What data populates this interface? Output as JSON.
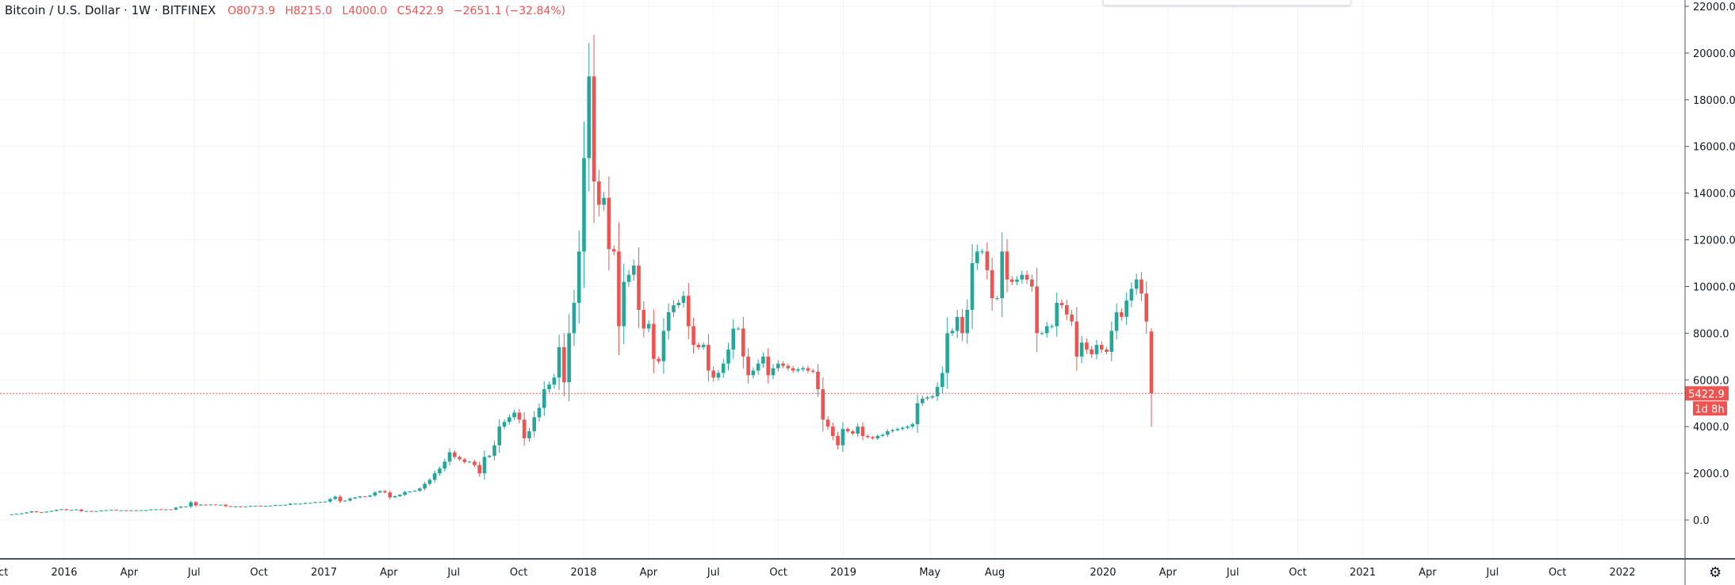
{
  "header": {
    "symbol": "Bitcoin / U.S. Dollar",
    "interval": "1W",
    "exchange": "BITFINEX",
    "open": "O8073.9",
    "high": "H8215.0",
    "low": "L4000.0",
    "close": "C5422.9",
    "change": "−2651.1 (−32.84%)"
  },
  "colors": {
    "up": "#26a69a",
    "down": "#ef5350",
    "grid": "#f0f3fa",
    "axis": "#50535e"
  },
  "price_label": "5422.9",
  "countdown_label": "1d 8h",
  "settings_icon": "gear-icon",
  "chart_data": {
    "type": "candlestick",
    "interval": "1W",
    "ylim": [
      -1500,
      22000
    ],
    "yticks": [
      0,
      2000,
      4000,
      6000,
      8000,
      10000,
      12000,
      14000,
      16000,
      18000,
      20000,
      22000
    ],
    "ytick_labels": [
      "0.0",
      "2000.0",
      "4000.0",
      "6000.0",
      "8000.0",
      "10000.0",
      "12000.0",
      "14000.0",
      "16000.0",
      "18000.0",
      "20000.0",
      "22000.0"
    ],
    "xticks": [
      {
        "label": "Oct",
        "date": "2015-10"
      },
      {
        "label": "2016",
        "date": "2016-01"
      },
      {
        "label": "Apr",
        "date": "2016-04"
      },
      {
        "label": "Jul",
        "date": "2016-07"
      },
      {
        "label": "Oct",
        "date": "2016-10"
      },
      {
        "label": "2017",
        "date": "2017-01"
      },
      {
        "label": "Apr",
        "date": "2017-04"
      },
      {
        "label": "Jul",
        "date": "2017-07"
      },
      {
        "label": "Oct",
        "date": "2017-10"
      },
      {
        "label": "2018",
        "date": "2018-01"
      },
      {
        "label": "Apr",
        "date": "2018-04"
      },
      {
        "label": "Jul",
        "date": "2018-07"
      },
      {
        "label": "Oct",
        "date": "2018-10"
      },
      {
        "label": "2019",
        "date": "2019-01"
      },
      {
        "label": "May",
        "date": "2019-05"
      },
      {
        "label": "Aug",
        "date": "2019-08"
      },
      {
        "label": "2020",
        "date": "2020-01"
      },
      {
        "label": "Apr",
        "date": "2020-04"
      },
      {
        "label": "Jul",
        "date": "2020-07"
      },
      {
        "label": "Oct",
        "date": "2020-10"
      },
      {
        "label": "2021",
        "date": "2021-01"
      },
      {
        "label": "Apr",
        "date": "2021-04"
      },
      {
        "label": "Jul",
        "date": "2021-07"
      },
      {
        "label": "Oct",
        "date": "2021-10"
      },
      {
        "label": "2022",
        "date": "2022-01"
      }
    ],
    "weekly_closes": [
      245,
      262,
      285,
      325,
      372,
      335,
      326,
      360,
      390,
      435,
      460,
      420,
      430,
      450,
      380,
      385,
      378,
      380,
      407,
      420,
      435,
      410,
      415,
      410,
      417,
      415,
      420,
      422,
      450,
      460,
      445,
      455,
      445,
      530,
      575,
      580,
      760,
      625,
      660,
      650,
      665,
      655,
      655,
      590,
      570,
      580,
      575,
      575,
      605,
      610,
      605,
      605,
      615,
      640,
      640,
      650,
      700,
      700,
      700,
      730,
      735,
      765,
      775,
      790,
      900,
      1000,
      800,
      830,
      920,
      965,
      1010,
      1000,
      1050,
      1180,
      1240,
      1180,
      970,
      1020,
      1080,
      1200,
      1220,
      1250,
      1350,
      1550,
      1720,
      2000,
      2200,
      2500,
      2900,
      2700,
      2600,
      2480,
      2500,
      2350,
      2000,
      2700,
      2750,
      3200,
      4000,
      4200,
      4400,
      4600,
      4300,
      3500,
      3800,
      4400,
      4800,
      5600,
      5800,
      6100,
      7400,
      5900,
      8000,
      9300,
      11500,
      15500,
      19000,
      14500,
      13500,
      13800,
      11600,
      11500,
      8300,
      10200,
      10500,
      10900,
      9000,
      8200,
      8400,
      6900,
      6800,
      8100,
      8900,
      9200,
      9300,
      9600,
      8300,
      7500,
      7400,
      7500,
      6400,
      6100,
      6300,
      6700,
      7300,
      8200,
      8200,
      7000,
      6200,
      6400,
      6700,
      7000,
      6200,
      6500,
      6700,
      6600,
      6500,
      6400,
      6450,
      6500,
      6400,
      6350,
      5600,
      4300,
      4000,
      3600,
      3200,
      3900,
      3800,
      3700,
      4000,
      3600,
      3550,
      3500,
      3600,
      3650,
      3800,
      3850,
      3900,
      3950,
      4000,
      4100,
      5000,
      5200,
      5250,
      5300,
      5700,
      6300,
      8000,
      8100,
      8700,
      8000,
      9000,
      11000,
      11500,
      11500,
      10700,
      9500,
      9500,
      11500,
      10300,
      10200,
      10300,
      10500,
      10300,
      10000,
      8000,
      8000,
      8300,
      8300,
      9300,
      9200,
      8800,
      8500,
      7000,
      7600,
      7300,
      7100,
      7500,
      7300,
      7200,
      8100,
      8900,
      8700,
      9400,
      9900,
      10300,
      9700,
      8500,
      8073.9
    ],
    "last_candle": {
      "open": 8073.9,
      "high": 8215.0,
      "low": 4000.0,
      "close": 5422.9
    },
    "current_price": 5422.9
  }
}
